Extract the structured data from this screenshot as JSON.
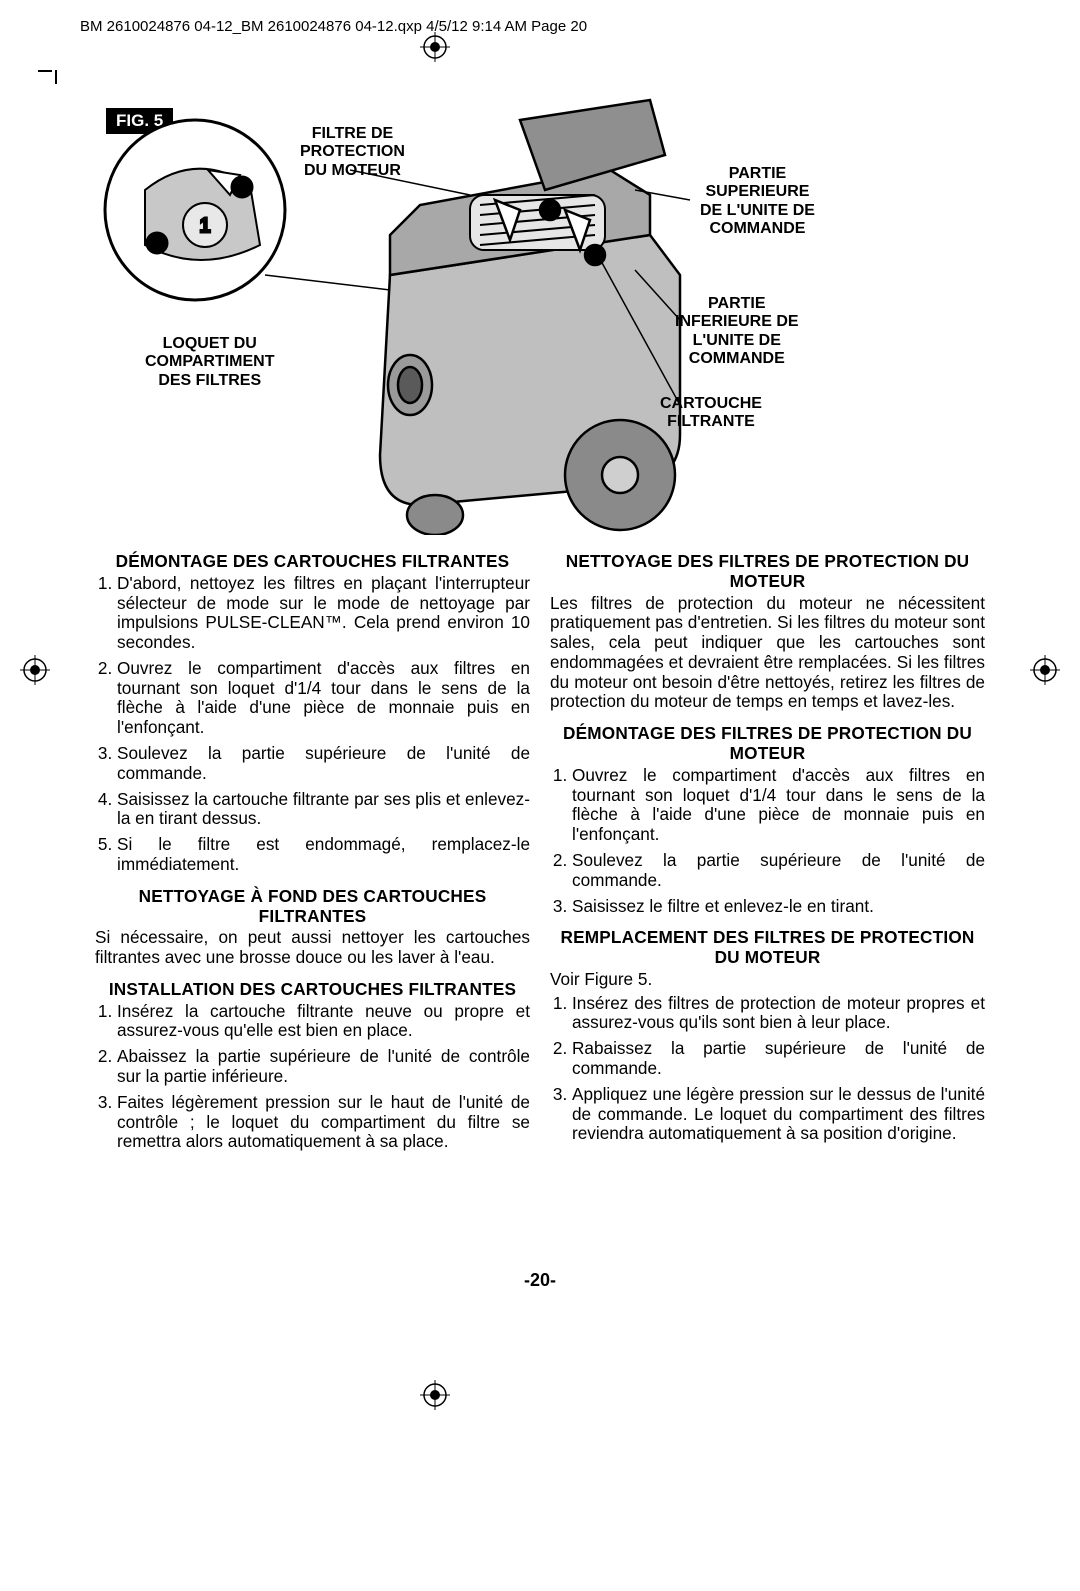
{
  "header": "BM 2610024876 04-12_BM 2610024876 04-12.qxp  4/5/12  9:14 AM  Page 20",
  "fig_label": "FIG. 5",
  "callouts": {
    "filter_motor": "FILTRE DE\nPROTECTION\nDU MOTEUR",
    "top_unit": "PARTIE\nSUPERIEURE\nDE L'UNITE DE\nCOMMANDE",
    "bottom_unit": "PARTIE\nINFERIEURE DE\nL'UNITE DE\nCOMMANDE",
    "cartridge": "CARTOUCHE\nFILTRANTE",
    "latch": "LOQUET DU\nCOMPARTIMENT\nDES FILTRES"
  },
  "left": {
    "h1": "DÉMONTAGE DES CARTOUCHES FILTRANTES",
    "l1": [
      "D'abord, nettoyez les filtres en plaçant l'interrupteur sélecteur de mode sur le mode de nettoyage par impulsions PULSE-CLEAN™. Cela prend environ 10 secondes.",
      "Ouvrez le compartiment d'accès aux filtres en tournant son loquet d'1/4 tour dans le sens de la flèche à l'aide d'une pièce de monnaie puis en l'enfonçant.",
      "Soulevez la partie supérieure de l'unité de commande.",
      "Saisissez la cartouche filtrante par ses plis et enlevez-la en tirant dessus.",
      "Si le filtre est endommagé, remplacez-le immédiatement."
    ],
    "h2": "NETTOYAGE À FOND DES CARTOUCHES FILTRANTES",
    "p2": "Si nécessaire, on peut aussi nettoyer les cartouches filtrantes avec une brosse douce ou les laver à l'eau.",
    "h3": "INSTALLATION DES CARTOUCHES FILTRANTES",
    "l3": [
      "Insérez la cartouche filtrante neuve ou propre et assurez-vous qu'elle est bien en place.",
      "Abaissez la partie supérieure de l'unité de contrôle sur la partie inférieure.",
      "Faites légèrement pression sur le haut de l'unité de contrôle ; le loquet du compartiment du filtre se remettra alors automatiquement à sa place."
    ]
  },
  "right": {
    "h1": "NETTOYAGE DES FILTRES DE PROTECTION DU MOTEUR",
    "p1": "Les filtres de protection du moteur ne nécessitent pratiquement pas d'entretien. Si les filtres du moteur sont sales, cela peut indiquer que les cartouches sont endommagées et devraient être remplacées. Si les filtres du moteur ont besoin d'être nettoyés, retirez les filtres de protection du moteur de temps en temps et lavez-les.",
    "h2": "DÉMONTAGE DES FILTRES DE PROTECTION DU MOTEUR",
    "l2": [
      "Ouvrez le compartiment d'accès aux filtres en tournant son loquet d'1/4 tour dans le sens de la flèche à l'aide d'une pièce de monnaie puis en l'enfonçant.",
      "Soulevez la partie supérieure de l'unité de commande.",
      "Saisissez le filtre et enlevez-le en tirant."
    ],
    "h3": "REMPLACEMENT DES FILTRES DE PROTECTION DU MOTEUR",
    "p3": "Voir Figure 5.",
    "l3": [
      "Insérez des filtres de protection de moteur propres et assurez-vous qu'ils sont bien à leur place.",
      "Rabaissez la partie supérieure de l'unité de commande.",
      "Appliquez une légère pression sur le dessus de l'unité de commande. Le loquet du compartiment des filtres reviendra automatiquement à sa position d'origine."
    ]
  },
  "page_num": "-20-"
}
